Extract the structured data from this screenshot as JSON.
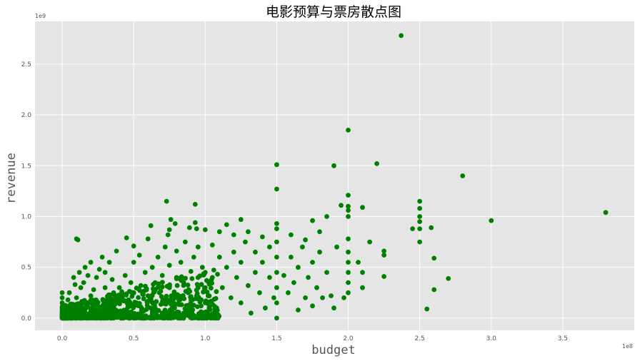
{
  "chart_data": {
    "type": "scatter",
    "title": "电影预算与票房散点图",
    "xlabel": "budget",
    "ylabel": "revenue",
    "x_exponent_label": "1e8",
    "y_exponent_label": "1e9",
    "xlim": [
      -0.19,
      4.0
    ],
    "ylim": [
      -0.12,
      2.92
    ],
    "x_ticks": [
      0.0,
      0.5,
      1.0,
      1.5,
      2.0,
      2.5,
      3.0,
      3.5
    ],
    "x_tick_labels": [
      "0.0",
      "0.5",
      "1.0",
      "1.5",
      "2.0",
      "2.5",
      "3.0",
      "3.5"
    ],
    "y_ticks": [
      0.0,
      0.5,
      1.0,
      1.5,
      2.0,
      2.5
    ],
    "y_tick_labels": [
      "0.0",
      "0.5",
      "1.0",
      "1.5",
      "2.0",
      "2.5"
    ],
    "grid": true,
    "style": "ggplot",
    "colors": {
      "points": "#008000",
      "plot_background": "#e5e5e5",
      "grid": "#ffffff"
    },
    "series": [
      {
        "points": [
          [
            0.0,
            0.0
          ],
          [
            0.0,
            0.05
          ],
          [
            0.0,
            0.1
          ],
          [
            0.0,
            0.15
          ],
          [
            0.0,
            0.2
          ],
          [
            0.0,
            0.25
          ],
          [
            0.02,
            0.02
          ],
          [
            0.03,
            0.08
          ],
          [
            0.04,
            0.18
          ],
          [
            0.05,
            0.12
          ],
          [
            0.05,
            0.25
          ],
          [
            0.06,
            0.03
          ],
          [
            0.08,
            0.4
          ],
          [
            0.09,
            0.33
          ],
          [
            0.1,
            0.2
          ],
          [
            0.1,
            0.78
          ],
          [
            0.11,
            0.77
          ],
          [
            0.12,
            0.45
          ],
          [
            0.13,
            0.3
          ],
          [
            0.14,
            0.08
          ],
          [
            0.15,
            0.35
          ],
          [
            0.16,
            0.5
          ],
          [
            0.17,
            0.15
          ],
          [
            0.18,
            0.42
          ],
          [
            0.2,
            0.05
          ],
          [
            0.2,
            0.22
          ],
          [
            0.2,
            0.55
          ],
          [
            0.22,
            0.28
          ],
          [
            0.24,
            0.4
          ],
          [
            0.25,
            0.12
          ],
          [
            0.26,
            0.48
          ],
          [
            0.28,
            0.6
          ],
          [
            0.3,
            0.02
          ],
          [
            0.3,
            0.3
          ],
          [
            0.3,
            0.45
          ],
          [
            0.32,
            0.18
          ],
          [
            0.33,
            0.55
          ],
          [
            0.35,
            0.1
          ],
          [
            0.35,
            0.38
          ],
          [
            0.36,
            0.25
          ],
          [
            0.38,
            0.66
          ],
          [
            0.4,
            0.05
          ],
          [
            0.4,
            0.3
          ],
          [
            0.42,
            0.2
          ],
          [
            0.44,
            0.42
          ],
          [
            0.45,
            0.79
          ],
          [
            0.46,
            0.12
          ],
          [
            0.48,
            0.35
          ],
          [
            0.5,
            0.0
          ],
          [
            0.5,
            0.25
          ],
          [
            0.5,
            0.55
          ],
          [
            0.5,
            0.71
          ],
          [
            0.52,
            0.15
          ],
          [
            0.54,
            0.62
          ],
          [
            0.55,
            0.32
          ],
          [
            0.56,
            0.08
          ],
          [
            0.58,
            0.45
          ],
          [
            0.6,
            0.22
          ],
          [
            0.6,
            0.78
          ],
          [
            0.62,
            0.91
          ],
          [
            0.63,
            0.5
          ],
          [
            0.65,
            0.1
          ],
          [
            0.65,
            0.35
          ],
          [
            0.67,
            0.6
          ],
          [
            0.68,
            0.25
          ],
          [
            0.7,
            0.05
          ],
          [
            0.7,
            0.42
          ],
          [
            0.72,
            0.7
          ],
          [
            0.73,
            1.15
          ],
          [
            0.74,
            0.82
          ],
          [
            0.75,
            0.3
          ],
          [
            0.75,
            0.52
          ],
          [
            0.75,
            0.87
          ],
          [
            0.76,
            0.97
          ],
          [
            0.78,
            0.15
          ],
          [
            0.79,
            0.93
          ],
          [
            0.8,
            0.4
          ],
          [
            0.8,
            0.66
          ],
          [
            0.82,
            0.2
          ],
          [
            0.83,
            0.55
          ],
          [
            0.85,
            0.05
          ],
          [
            0.85,
            0.35
          ],
          [
            0.86,
            0.75
          ],
          [
            0.88,
            0.25
          ],
          [
            0.89,
            0.89
          ],
          [
            0.9,
            0.1
          ],
          [
            0.9,
            0.46
          ],
          [
            0.92,
            0.6
          ],
          [
            0.93,
            1.12
          ],
          [
            0.93,
            0.94
          ],
          [
            0.94,
            0.88
          ],
          [
            0.95,
            0.3
          ],
          [
            0.95,
            0.7
          ],
          [
            0.97,
            0.18
          ],
          [
            0.98,
            0.5
          ],
          [
            1.0,
            0.0
          ],
          [
            1.0,
            0.15
          ],
          [
            1.0,
            0.3
          ],
          [
            1.0,
            0.45
          ],
          [
            1.0,
            0.87
          ],
          [
            1.02,
            0.22
          ],
          [
            1.05,
            0.72
          ],
          [
            1.05,
            0.4
          ],
          [
            1.08,
            0.1
          ],
          [
            1.1,
            0.6
          ],
          [
            1.1,
            0.85
          ],
          [
            1.12,
            0.3
          ],
          [
            1.15,
            0.92
          ],
          [
            1.15,
            0.5
          ],
          [
            1.18,
            0.2
          ],
          [
            1.2,
            0.82
          ],
          [
            1.2,
            0.65
          ],
          [
            1.22,
            0.4
          ],
          [
            1.25,
            0.97
          ],
          [
            1.25,
            0.15
          ],
          [
            1.25,
            0.55
          ],
          [
            1.28,
            0.75
          ],
          [
            1.3,
            0.32
          ],
          [
            1.3,
            0.85
          ],
          [
            1.32,
            0.05
          ],
          [
            1.35,
            0.45
          ],
          [
            1.35,
            0.65
          ],
          [
            1.38,
            0.25
          ],
          [
            1.4,
            0.8
          ],
          [
            1.4,
            0.55
          ],
          [
            1.42,
            0.1
          ],
          [
            1.45,
            0.4
          ],
          [
            1.45,
            0.7
          ],
          [
            1.48,
            0.2
          ],
          [
            1.5,
            0.0
          ],
          [
            1.5,
            0.15
          ],
          [
            1.5,
            0.3
          ],
          [
            1.5,
            0.45
          ],
          [
            1.5,
            0.6
          ],
          [
            1.5,
            0.75
          ],
          [
            1.5,
            0.88
          ],
          [
            1.5,
            0.93
          ],
          [
            1.5,
            1.27
          ],
          [
            1.5,
            1.51
          ],
          [
            1.55,
            0.42
          ],
          [
            1.58,
            0.25
          ],
          [
            1.6,
            0.82
          ],
          [
            1.6,
            0.6
          ],
          [
            1.62,
            0.35
          ],
          [
            1.65,
            0.08
          ],
          [
            1.65,
            0.5
          ],
          [
            1.68,
            0.7
          ],
          [
            1.7,
            0.2
          ],
          [
            1.7,
            0.77
          ],
          [
            1.72,
            0.4
          ],
          [
            1.75,
            0.55
          ],
          [
            1.75,
            0.96
          ],
          [
            1.75,
            0.12
          ],
          [
            1.78,
            0.3
          ],
          [
            1.8,
            0.65
          ],
          [
            1.8,
            0.85
          ],
          [
            1.82,
            0.2
          ],
          [
            1.85,
            1.0
          ],
          [
            1.85,
            0.45
          ],
          [
            1.88,
            0.22
          ],
          [
            1.9,
            1.5
          ],
          [
            1.9,
            0.1
          ],
          [
            1.92,
            0.7
          ],
          [
            1.95,
            1.11
          ],
          [
            1.97,
            0.2
          ],
          [
            2.0,
            0.25
          ],
          [
            2.0,
            0.35
          ],
          [
            2.0,
            0.45
          ],
          [
            2.0,
            0.55
          ],
          [
            2.0,
            0.65
          ],
          [
            2.0,
            0.78
          ],
          [
            2.0,
            1.0
          ],
          [
            2.0,
            1.06
          ],
          [
            2.0,
            1.1
          ],
          [
            2.0,
            1.21
          ],
          [
            2.0,
            1.85
          ],
          [
            2.07,
            0.55
          ],
          [
            2.1,
            0.3
          ],
          [
            2.1,
            0.45
          ],
          [
            2.1,
            1.09
          ],
          [
            2.15,
            0.75
          ],
          [
            2.2,
            1.52
          ],
          [
            2.25,
            0.41
          ],
          [
            2.25,
            0.62
          ],
          [
            2.25,
            0.66
          ],
          [
            2.37,
            2.78
          ],
          [
            2.45,
            0.88
          ],
          [
            2.5,
            0.75
          ],
          [
            2.5,
            0.88
          ],
          [
            2.5,
            0.95
          ],
          [
            2.5,
            1.0
          ],
          [
            2.5,
            1.08
          ],
          [
            2.5,
            1.15
          ],
          [
            2.55,
            0.09
          ],
          [
            2.58,
            0.89
          ],
          [
            2.6,
            0.28
          ],
          [
            2.6,
            0.59
          ],
          [
            2.7,
            0.39
          ],
          [
            2.8,
            1.4
          ],
          [
            3.0,
            0.96
          ],
          [
            3.8,
            1.04
          ]
        ]
      }
    ]
  }
}
